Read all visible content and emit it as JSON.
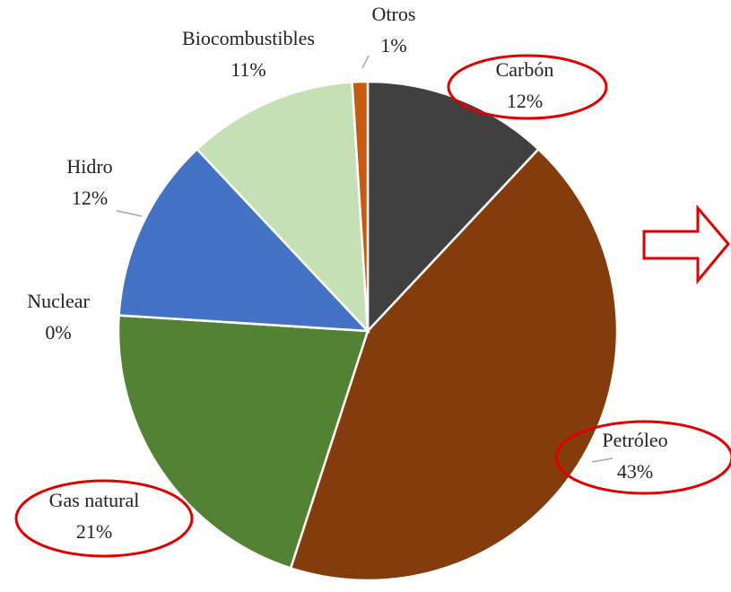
{
  "chart_data": {
    "type": "pie",
    "categories": [
      "Carbón",
      "Petróleo",
      "Gas natural",
      "Nuclear",
      "Hidro",
      "Biocombustibles",
      "Otros"
    ],
    "values": [
      12,
      43,
      21,
      0,
      12,
      11,
      1
    ],
    "value_labels": [
      "12%",
      "43%",
      "21%",
      "0%",
      "12%",
      "11%",
      "1%"
    ],
    "colors": [
      "#404040",
      "#843c0c",
      "#548235",
      "#a5a5a5",
      "#4472c4",
      "#c5e0b4",
      "#c55a11"
    ]
  }
}
